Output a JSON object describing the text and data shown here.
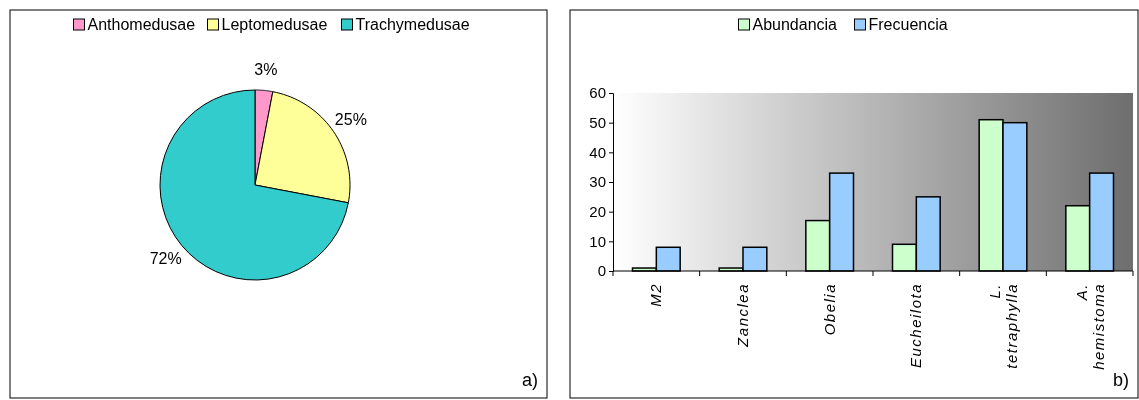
{
  "chart_data": [
    {
      "type": "pie",
      "categories": [
        "Anthomedusae",
        "Leptomedusae",
        "Trachymedusae"
      ],
      "values": [
        3,
        25,
        72
      ],
      "colors": [
        "#ff99cc",
        "#ffff99",
        "#33cccc"
      ],
      "value_labels": [
        "3%",
        "25%",
        "72%"
      ],
      "legend": "top",
      "annotations": [
        "a)"
      ]
    },
    {
      "type": "bar",
      "categories": [
        "M2",
        "Zanclea",
        "Obelia",
        "Eucheilota",
        "L. tetraphylla",
        "A. hemistoma"
      ],
      "series": [
        {
          "name": "Abundancia",
          "color": "#ccffcc",
          "values": [
            1,
            1,
            17,
            9,
            51,
            22
          ]
        },
        {
          "name": "Frecuencia",
          "color": "#99ccff",
          "values": [
            8,
            8,
            33,
            25,
            50,
            33
          ]
        }
      ],
      "ylim": [
        0,
        60
      ],
      "yticks": [
        0,
        10,
        20,
        30,
        40,
        50,
        60
      ],
      "legend": "top",
      "annotations": [
        "b)"
      ]
    }
  ]
}
